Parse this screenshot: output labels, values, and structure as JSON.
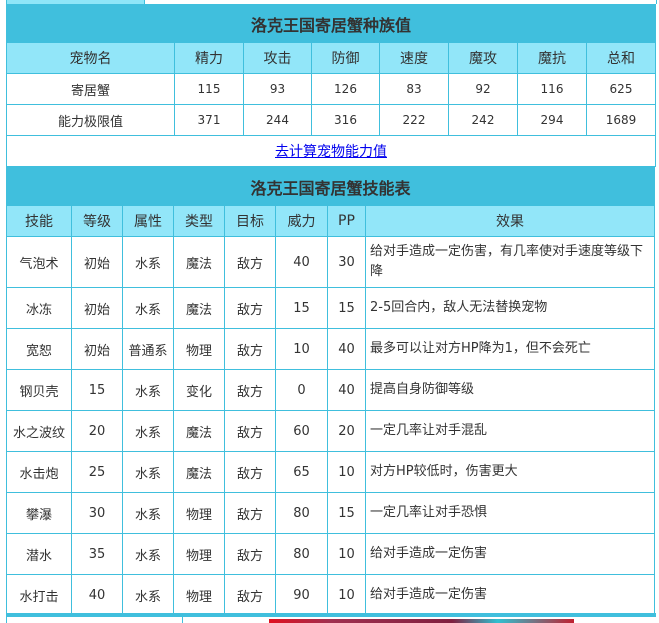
{
  "stats": {
    "title": "洛克王国寄居蟹种族值",
    "headers": [
      "宠物名",
      "精力",
      "攻击",
      "防御",
      "速度",
      "魔攻",
      "魔抗",
      "总和"
    ],
    "rows": [
      [
        "寄居蟹",
        "115",
        "93",
        "126",
        "83",
        "92",
        "116",
        "625"
      ],
      [
        "能力极限值",
        "371",
        "244",
        "316",
        "222",
        "242",
        "294",
        "1689"
      ]
    ],
    "link": "去计算宠物能力值"
  },
  "skills": {
    "title": "洛克王国寄居蟹技能表",
    "headers": [
      "技能",
      "等级",
      "属性",
      "类型",
      "目标",
      "威力",
      "PP",
      "效果"
    ],
    "rows": [
      [
        "气泡术",
        "初始",
        "水系",
        "魔法",
        "敌方",
        "40",
        "30",
        "给对手造成一定伤害，有几率使对手速度等级下降"
      ],
      [
        "冰冻",
        "初始",
        "水系",
        "魔法",
        "敌方",
        "15",
        "15",
        "2-5回合内，敌人无法替换宠物"
      ],
      [
        "宽恕",
        "初始",
        "普通系",
        "物理",
        "敌方",
        "10",
        "40",
        "最多可以让对方HP降为1，但不会死亡"
      ],
      [
        "钢贝壳",
        "15",
        "水系",
        "变化",
        "敌方",
        "0",
        "40",
        "提高自身防御等级"
      ],
      [
        "水之波纹",
        "20",
        "水系",
        "魔法",
        "敌方",
        "60",
        "20",
        "一定几率让对手混乱"
      ],
      [
        "水击炮",
        "25",
        "水系",
        "魔法",
        "敌方",
        "65",
        "10",
        "对方HP较低时，伤害更大"
      ],
      [
        "攀瀑",
        "30",
        "水系",
        "物理",
        "敌方",
        "80",
        "15",
        "一定几率让对手恐惧"
      ],
      [
        "潜水",
        "35",
        "水系",
        "物理",
        "敌方",
        "80",
        "10",
        "给对手造成一定伤害"
      ],
      [
        "水打击",
        "40",
        "水系",
        "物理",
        "敌方",
        "90",
        "10",
        "给对手造成一定伤害"
      ]
    ]
  },
  "colors": {
    "title_bg": "#40bfdd",
    "header_bg": "#92e6f9",
    "border": "#40bfdd",
    "link": "#0000ee"
  }
}
